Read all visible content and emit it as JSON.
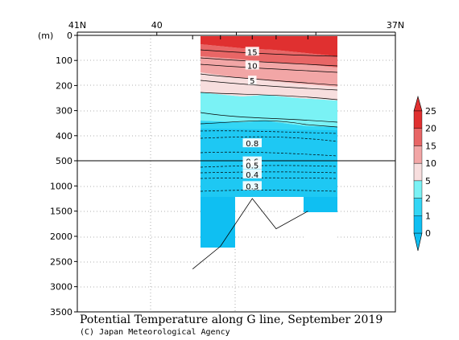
{
  "chart_data": {
    "type": "heatmap",
    "title": "Potential Temperature along G line, September 2019",
    "credit": "(C) Japan Meteorological Agency",
    "y_unit_label": "(m)",
    "x_ticks": [
      {
        "label": "41N",
        "lat": 41
      },
      {
        "label": "40",
        "lat": 40
      },
      {
        "label": "",
        "lat": 39
      },
      {
        "label": "",
        "lat": 38
      },
      {
        "label": "37N",
        "lat": 37
      }
    ],
    "y_ticks_upper": [
      0,
      100,
      200,
      300,
      400,
      500
    ],
    "y_ticks_lower": [
      1000,
      1500,
      2000,
      2500,
      3000,
      3500
    ],
    "y_break_depth": 500,
    "station_lats": [
      39.55,
      39.2,
      38.8,
      38.5,
      38.1
    ],
    "bottom_profile": [
      {
        "lat": 39.55,
        "depth": 2650
      },
      {
        "lat": 39.2,
        "depth": 2200
      },
      {
        "lat": 38.8,
        "depth": 1250
      },
      {
        "lat": 38.5,
        "depth": 1850
      },
      {
        "lat": 38.1,
        "depth": 1500
      }
    ],
    "color_bands": [
      {
        "from": 0,
        "to": 1,
        "color": "#0fbff2"
      },
      {
        "from": 1,
        "to": 2,
        "color": "#33d6f5"
      },
      {
        "from": 2,
        "to": 5,
        "color": "#7af2f5"
      },
      {
        "from": 5,
        "to": 10,
        "color": "#f7dede"
      },
      {
        "from": 10,
        "to": 15,
        "color": "#f2a6a6"
      },
      {
        "from": 15,
        "to": 20,
        "color": "#e86666"
      },
      {
        "from": 20,
        "to": 25,
        "color": "#e03030"
      }
    ],
    "colorbar_labels": [
      "0",
      "1",
      "2",
      "5",
      "10",
      "15",
      "20",
      "25"
    ],
    "contour_labels": [
      {
        "text": "15",
        "lat": 38.8,
        "depth": 65
      },
      {
        "text": "10",
        "lat": 38.8,
        "depth": 120
      },
      {
        "text": "5",
        "lat": 38.8,
        "depth": 180
      },
      {
        "text": "0.8",
        "lat": 38.8,
        "depth": 430
      },
      {
        "text": "0.6",
        "lat": 38.8,
        "depth": 510
      },
      {
        "text": "0.5",
        "lat": 38.8,
        "depth": 590
      },
      {
        "text": "0.4",
        "lat": 38.8,
        "depth": 770
      },
      {
        "text": "0.3",
        "lat": 38.8,
        "depth": 1000
      }
    ]
  }
}
